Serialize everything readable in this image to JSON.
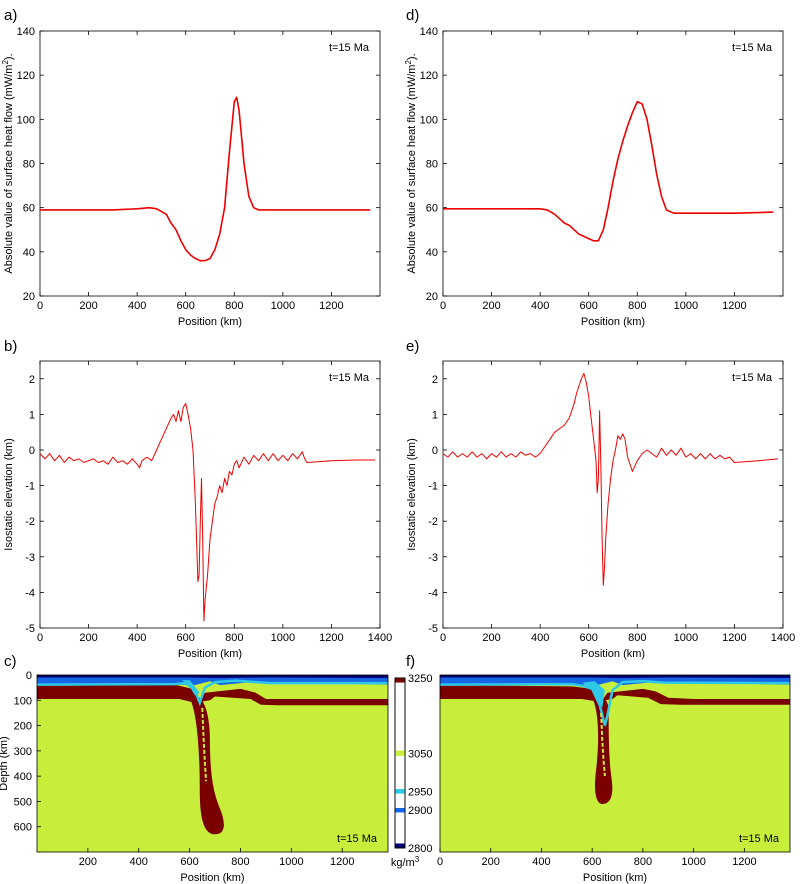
{
  "chart_data": [
    {
      "id": "a",
      "panel_label": "a)",
      "type": "line",
      "time_label": "t=15 Ma",
      "xlabel": "Position (km)",
      "ylabel": "Absolute value of surface heat flow (mW/m²).",
      "xlim": [
        0,
        1400
      ],
      "ylim": [
        20,
        140
      ],
      "xticks": [
        "0",
        "200",
        "400",
        "600",
        "800",
        "1000",
        "1200"
      ],
      "yticks": [
        "20",
        "40",
        "60",
        "80",
        "100",
        "120",
        "140"
      ],
      "series": [
        {
          "color": "#ee0000",
          "x": [
            0,
            100,
            200,
            300,
            400,
            450,
            480,
            520,
            540,
            560,
            580,
            600,
            620,
            640,
            660,
            680,
            700,
            720,
            740,
            760,
            780,
            800,
            810,
            820,
            840,
            860,
            880,
            900,
            950,
            1000,
            1100,
            1200,
            1360
          ],
          "y": [
            59,
            59,
            59,
            59,
            59.5,
            60,
            59.5,
            57,
            53,
            50,
            45,
            41,
            38.5,
            37,
            36,
            36,
            37,
            41,
            48,
            60,
            85,
            108,
            110,
            104,
            80,
            65,
            60,
            59,
            59,
            59,
            59,
            59,
            59
          ]
        }
      ]
    },
    {
      "id": "b",
      "panel_label": "b)",
      "type": "line",
      "time_label": "t=15 Ma",
      "xlabel": "Position (km)",
      "ylabel": "Isostatic elevation (km)",
      "xlim": [
        0,
        1400
      ],
      "ylim": [
        -5,
        2.5
      ],
      "xticks": [
        "0",
        "200",
        "400",
        "600",
        "800",
        "1000",
        "1200",
        "1400"
      ],
      "yticks": [
        "-5",
        "-4",
        "-3",
        "-2",
        "-1",
        "0",
        "1",
        "2"
      ],
      "series": [
        {
          "color": "#ee0000",
          "x": [
            0,
            20,
            40,
            60,
            80,
            100,
            120,
            140,
            160,
            180,
            200,
            220,
            240,
            260,
            280,
            300,
            320,
            340,
            360,
            380,
            400,
            410,
            420,
            440,
            460,
            480,
            500,
            520,
            540,
            550,
            560,
            570,
            580,
            590,
            600,
            610,
            620,
            630,
            640,
            650,
            655,
            660,
            665,
            670,
            675,
            680,
            690,
            700,
            710,
            720,
            730,
            740,
            750,
            760,
            770,
            780,
            790,
            800,
            810,
            820,
            840,
            860,
            880,
            900,
            920,
            940,
            960,
            980,
            1000,
            1020,
            1040,
            1060,
            1080,
            1090,
            1100,
            1200,
            1300,
            1380
          ],
          "y": [
            -0.1,
            -0.25,
            -0.1,
            -0.3,
            -0.15,
            -0.35,
            -0.2,
            -0.3,
            -0.25,
            -0.35,
            -0.3,
            -0.25,
            -0.35,
            -0.3,
            -0.4,
            -0.2,
            -0.35,
            -0.3,
            -0.4,
            -0.25,
            -0.4,
            -0.5,
            -0.3,
            -0.2,
            -0.3,
            0.0,
            0.3,
            0.6,
            0.9,
            1.0,
            0.8,
            1.1,
            0.8,
            1.2,
            1.3,
            1.0,
            0.6,
            0.0,
            -1.5,
            -3.7,
            -3.5,
            -2.0,
            -0.8,
            -2.5,
            -4.8,
            -4.2,
            -3.5,
            -2.5,
            -2.0,
            -1.5,
            -1.3,
            -1.0,
            -1.2,
            -0.8,
            -1.0,
            -0.6,
            -0.7,
            -0.4,
            -0.3,
            -0.5,
            -0.2,
            -0.4,
            -0.15,
            -0.3,
            -0.1,
            -0.3,
            -0.1,
            -0.3,
            -0.15,
            -0.3,
            -0.1,
            -0.25,
            -0.05,
            -0.25,
            -0.35,
            -0.3,
            -0.28,
            -0.28
          ]
        }
      ]
    },
    {
      "id": "c",
      "panel_label": "c)",
      "type": "heatmap",
      "time_label": "t=15 Ma",
      "xlabel": "Position (km)",
      "ylabel": "Depth (km)",
      "xlim": [
        0,
        1380
      ],
      "ylim": [
        700,
        0
      ],
      "xticks": [
        "200",
        "400",
        "600",
        "800",
        "1000",
        "1200"
      ],
      "yticks": [
        "0",
        "100",
        "200",
        "300",
        "400",
        "500",
        "600"
      ],
      "colorbar": {
        "unit": "kg/m³",
        "min": 2800,
        "max": 3250,
        "labels": [
          "3250",
          "3050",
          "2950",
          "2900",
          "2800"
        ],
        "colors": [
          "#7a0000",
          "#c8ee3c",
          "#2fc9e8",
          "#1565e6",
          "#00006e"
        ]
      }
    },
    {
      "id": "d",
      "panel_label": "d)",
      "type": "line",
      "time_label": "t=15 Ma",
      "xlabel": "Position (km)",
      "ylabel": "Absolute value of surface heat flow (mW/m²).",
      "xlim": [
        0,
        1400
      ],
      "ylim": [
        20,
        140
      ],
      "xticks": [
        "0",
        "200",
        "400",
        "600",
        "800",
        "1000",
        "1200"
      ],
      "yticks": [
        "20",
        "40",
        "60",
        "80",
        "100",
        "120",
        "140"
      ],
      "series": [
        {
          "color": "#ee0000",
          "x": [
            0,
            100,
            200,
            300,
            400,
            430,
            460,
            480,
            500,
            520,
            540,
            560,
            580,
            600,
            620,
            640,
            660,
            680,
            700,
            720,
            740,
            760,
            780,
            800,
            820,
            840,
            860,
            880,
            900,
            920,
            950,
            1000,
            1100,
            1200,
            1360
          ],
          "y": [
            59.5,
            59.5,
            59.5,
            59.5,
            59.5,
            59,
            57,
            55,
            53,
            52,
            50,
            48,
            47,
            46,
            45,
            45,
            50,
            60,
            72,
            82,
            90,
            97,
            103,
            108,
            107,
            100,
            88,
            75,
            65,
            59,
            57.5,
            57.5,
            57.5,
            57.5,
            58
          ]
        }
      ]
    },
    {
      "id": "e",
      "panel_label": "e)",
      "type": "line",
      "time_label": "t=15 Ma",
      "xlabel": "Position (km)",
      "ylabel": "Isostatic elevation (km)",
      "xlim": [
        0,
        1400
      ],
      "ylim": [
        -5,
        2.5
      ],
      "xticks": [
        "0",
        "200",
        "400",
        "600",
        "800",
        "1000",
        "1200",
        "1400"
      ],
      "yticks": [
        "-5",
        "-4",
        "-3",
        "-2",
        "-1",
        "0",
        "1",
        "2"
      ],
      "series": [
        {
          "color": "#ee0000",
          "x": [
            0,
            20,
            40,
            60,
            80,
            100,
            120,
            140,
            160,
            180,
            200,
            220,
            240,
            260,
            280,
            300,
            320,
            340,
            360,
            380,
            400,
            420,
            440,
            460,
            480,
            500,
            520,
            540,
            550,
            560,
            570,
            580,
            590,
            600,
            610,
            620,
            630,
            635,
            640,
            645,
            650,
            655,
            660,
            665,
            670,
            680,
            690,
            700,
            710,
            720,
            730,
            740,
            750,
            760,
            770,
            780,
            800,
            820,
            840,
            860,
            880,
            900,
            920,
            940,
            960,
            980,
            1000,
            1020,
            1040,
            1060,
            1080,
            1100,
            1120,
            1140,
            1160,
            1180,
            1200,
            1300,
            1380
          ],
          "y": [
            -0.1,
            -0.2,
            -0.05,
            -0.2,
            -0.1,
            -0.2,
            -0.05,
            -0.2,
            -0.1,
            -0.25,
            -0.1,
            -0.2,
            -0.05,
            -0.2,
            -0.1,
            -0.2,
            -0.05,
            -0.15,
            -0.1,
            -0.2,
            -0.1,
            0.1,
            0.3,
            0.5,
            0.6,
            0.7,
            0.9,
            1.3,
            1.6,
            1.8,
            2.0,
            2.15,
            1.9,
            1.5,
            0.9,
            0.3,
            -0.3,
            -1.2,
            -0.8,
            1.1,
            -0.5,
            -2.5,
            -3.8,
            -3.3,
            -2.5,
            -1.5,
            -0.8,
            -0.3,
            0.0,
            0.4,
            0.3,
            0.45,
            0.3,
            -0.2,
            -0.4,
            -0.6,
            -0.3,
            -0.1,
            0.0,
            -0.1,
            -0.2,
            0.05,
            -0.15,
            0.0,
            -0.15,
            0.05,
            -0.2,
            -0.1,
            -0.25,
            -0.1,
            -0.25,
            -0.1,
            -0.25,
            -0.15,
            -0.25,
            -0.2,
            -0.35,
            -0.3,
            -0.25
          ]
        }
      ]
    },
    {
      "id": "f",
      "panel_label": "f)",
      "type": "heatmap",
      "time_label": "t=15 Ma",
      "xlabel": "Position (km)",
      "ylabel": "",
      "xlim": [
        0,
        1380
      ],
      "ylim": [
        700,
        0
      ],
      "xticks": [
        "0",
        "200",
        "400",
        "600",
        "800",
        "1000",
        "1200"
      ],
      "yticks": []
    }
  ]
}
